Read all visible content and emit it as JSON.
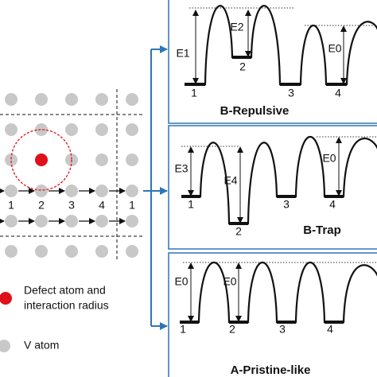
{
  "legend": {
    "defect_line1": "Defect atom and",
    "defect_line2": "interaction radius",
    "atom": "V atom"
  },
  "lattice": {
    "site_labels": [
      "1",
      "2",
      "3",
      "4",
      "1"
    ]
  },
  "panels": [
    {
      "title": "B-Repulsive",
      "energy_labels": [
        "E1",
        "E2",
        "E0"
      ],
      "site_labels": [
        "1",
        "2",
        "3",
        "4"
      ]
    },
    {
      "title": "B-Trap",
      "energy_labels": [
        "E3",
        "E4",
        "E0"
      ],
      "site_labels": [
        "1",
        "2",
        "3",
        "4"
      ]
    },
    {
      "title": "A-Pristine-like",
      "energy_labels": [
        "E0",
        "E0"
      ],
      "site_labels": [
        "1",
        "2",
        "3",
        "4"
      ]
    }
  ]
}
